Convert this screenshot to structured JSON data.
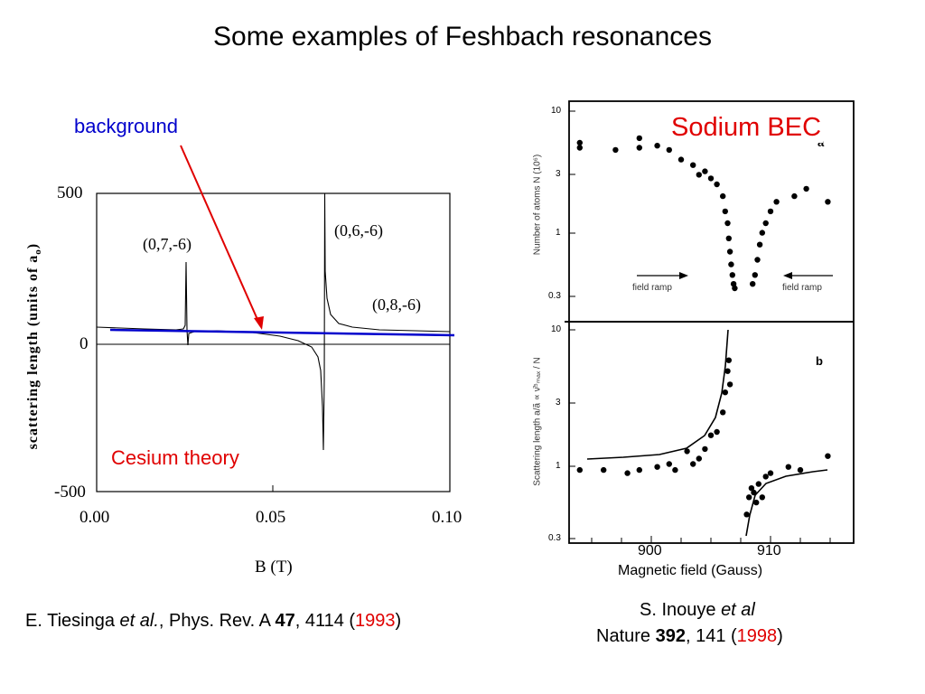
{
  "slide": {
    "title": "Some examples of Feshbach resonances"
  },
  "left_figure": {
    "ylabel_main": "scattering length (units of a",
    "ylabel_sub": "o",
    "ylabel_end": ")",
    "xlabel": "B (T)",
    "yticks": [
      "500",
      "0",
      "-500"
    ],
    "xticks": [
      "0.00",
      "0.05",
      "0.10"
    ],
    "resonance_labels": [
      "(0,7,-6)",
      "(0,6,-6)",
      "(0,8,-6)"
    ],
    "annotation_background": "background",
    "annotation_theory": "Cesium theory",
    "colors": {
      "background_line": "#0000cc",
      "arrow": "#e00000",
      "theory_label": "#e00000"
    }
  },
  "right_figure": {
    "title": "Sodium BEC",
    "panel_a_label": "a",
    "panel_b_label": "b",
    "panel_a_ylabel": "Number of atoms N (10⁶)",
    "panel_b_ylabel": "Scattering length a/ã ∝ ν̄⁵ₘₐₓ / N",
    "panel_a_yticks": [
      "10",
      "3",
      "1",
      "0.3"
    ],
    "panel_b_yticks": [
      "10",
      "3",
      "1",
      "0.3"
    ],
    "field_ramp_left": "field ramp",
    "field_ramp_right": "field ramp",
    "xticks": [
      "900",
      "910"
    ],
    "xlabel": "Magnetic field (Gauss)"
  },
  "chart_data": [
    {
      "type": "line",
      "title": "",
      "xlabel": "B (T)",
      "ylabel": "scattering length (units of a_o)",
      "xlim": [
        0.0,
        0.1
      ],
      "ylim": [
        -500,
        500
      ],
      "resonances": [
        {
          "label": "(0,7,-6)",
          "B": 0.0255
        },
        {
          "label": "(0,6,-6)",
          "B": 0.064
        },
        {
          "label": "(0,8,-6)",
          "B": 0.082
        }
      ]
    },
    {
      "type": "scatter",
      "title": "Sodium BEC",
      "xlabel": "Magnetic field (Gauss)",
      "xticks": [
        900,
        910
      ],
      "y_scale": "log",
      "panels": [
        {
          "label": "a",
          "ylabel": "Number of atoms N (10⁶)",
          "yticks": [
            10,
            3,
            1,
            0.3
          ],
          "points": [
            [
              894,
              5.5
            ],
            [
              894,
              5.0
            ],
            [
              897,
              4.8
            ],
            [
              899,
              6.0
            ],
            [
              899,
              5.0
            ],
            [
              900.5,
              5.2
            ],
            [
              901.5,
              4.8
            ],
            [
              902.5,
              4.0
            ],
            [
              903.5,
              3.6
            ],
            [
              904,
              3.0
            ],
            [
              904.5,
              3.2
            ],
            [
              905,
              2.8
            ],
            [
              905.5,
              2.5
            ],
            [
              906,
              2.0
            ],
            [
              906.2,
              1.5
            ],
            [
              906.4,
              1.2
            ],
            [
              906.5,
              0.9
            ],
            [
              906.6,
              0.7
            ],
            [
              906.7,
              0.55
            ],
            [
              906.8,
              0.45
            ],
            [
              906.9,
              0.38
            ],
            [
              907,
              0.35
            ],
            [
              908.5,
              0.38
            ],
            [
              908.7,
              0.45
            ],
            [
              908.9,
              0.6
            ],
            [
              909.1,
              0.8
            ],
            [
              909.3,
              1.0
            ],
            [
              909.6,
              1.2
            ],
            [
              910,
              1.5
            ],
            [
              910.5,
              1.8
            ],
            [
              912,
              2.0
            ],
            [
              913,
              2.3
            ],
            [
              914.8,
              1.8
            ]
          ]
        },
        {
          "label": "b",
          "ylabel": "Scattering length a/ã ∝ ν̄⁵ₘₐₓ / N",
          "yticks": [
            10,
            3,
            1,
            0.3
          ],
          "points": [
            [
              894,
              0.95
            ],
            [
              896,
              0.95
            ],
            [
              898,
              0.9
            ],
            [
              899,
              0.95
            ],
            [
              900.5,
              1.0
            ],
            [
              901.5,
              1.05
            ],
            [
              902,
              0.95
            ],
            [
              903,
              1.3
            ],
            [
              903.5,
              1.05
            ],
            [
              904,
              1.15
            ],
            [
              904.5,
              1.35
            ],
            [
              905,
              1.7
            ],
            [
              905.5,
              1.8
            ],
            [
              906,
              2.5
            ],
            [
              906.2,
              3.5
            ],
            [
              906.4,
              5.0
            ],
            [
              906.5,
              6.0
            ],
            [
              906.6,
              4.0
            ],
            [
              908,
              0.45
            ],
            [
              908.2,
              0.6
            ],
            [
              908.4,
              0.7
            ],
            [
              908.6,
              0.65
            ],
            [
              908.8,
              0.55
            ],
            [
              909,
              0.75
            ],
            [
              909.3,
              0.6
            ],
            [
              909.6,
              0.85
            ],
            [
              910,
              0.9
            ],
            [
              911.5,
              1.0
            ],
            [
              912.5,
              0.95
            ],
            [
              914.8,
              1.2
            ]
          ]
        }
      ]
    }
  ],
  "references": {
    "left": {
      "authors": "E. Tiesinga ",
      "etal": "et al.",
      "journal": ", Phys. Rev. A ",
      "volume": "47",
      "page": ", 4114 (",
      "year": "1993",
      "close": ")"
    },
    "right": {
      "authors": "S. Inouye ",
      "etal": "et al",
      "journal": "Nature ",
      "volume": "392",
      "page": ", 141 (",
      "year": "1998",
      "close": ")"
    }
  }
}
